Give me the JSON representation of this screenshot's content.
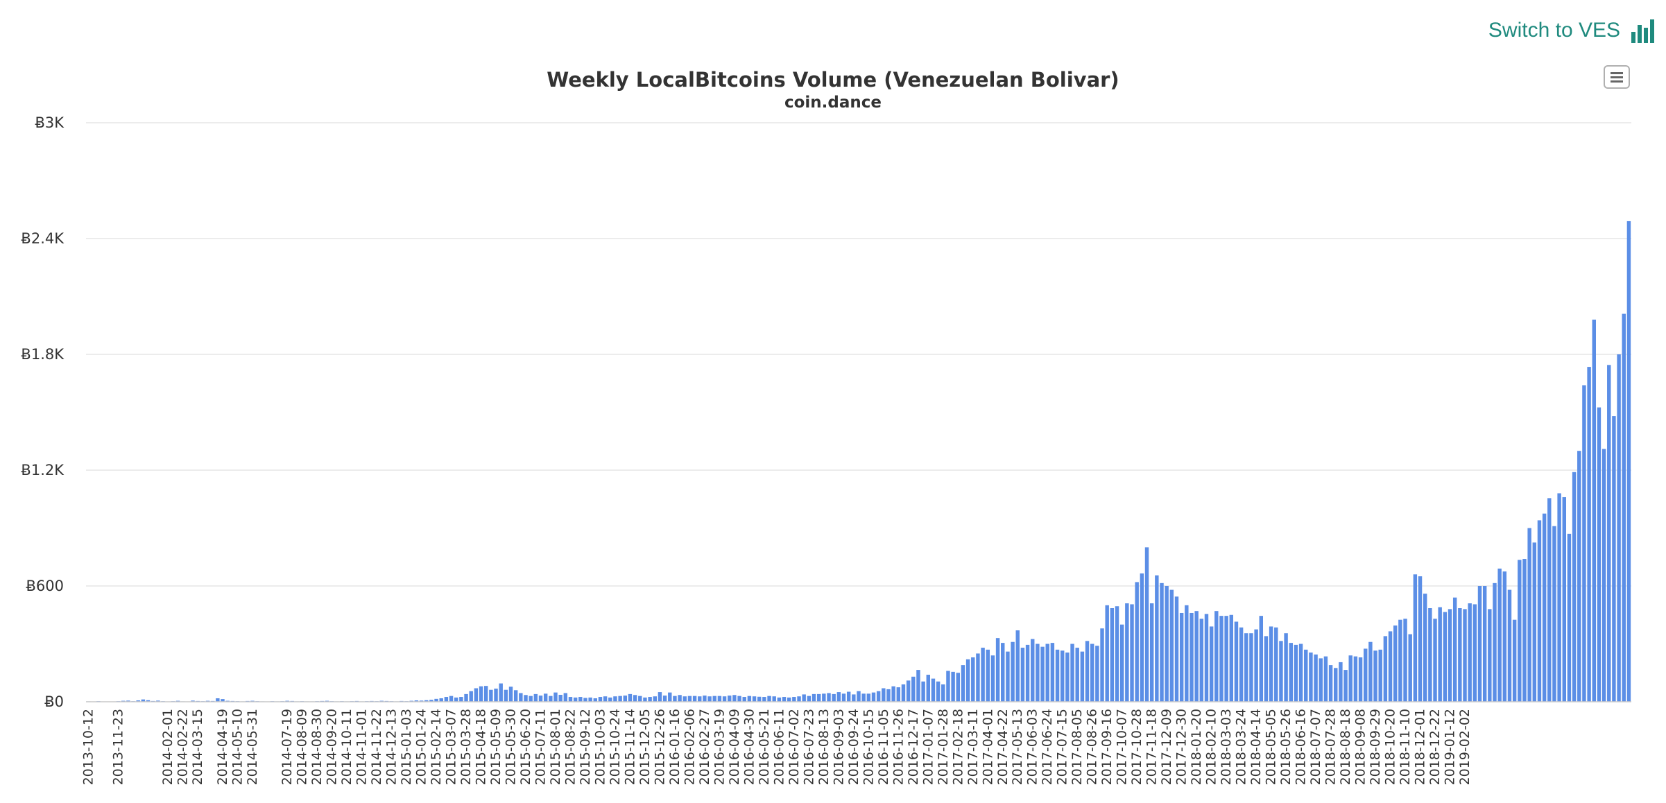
{
  "header": {
    "switch_label": "Switch to VES",
    "switch_icon": "bar-chart-icon",
    "menu_icon": "hamburger-menu-icon"
  },
  "colors": {
    "bar": "#5b8ee6",
    "grid": "#e6e6e6",
    "link": "#1f8a7e"
  },
  "chart_data": {
    "type": "bar",
    "title": "Weekly LocalBitcoins Volume (Venezuelan Bolivar)",
    "subtitle": "coin.dance",
    "xlabel": "",
    "ylabel": "",
    "ylim": [
      0,
      3000
    ],
    "yticks": [
      0,
      600,
      1200,
      1800,
      2400,
      3000
    ],
    "ytick_labels": [
      "Ƀ0",
      "Ƀ600",
      "Ƀ1.2K",
      "Ƀ1.8K",
      "Ƀ2.4K",
      "Ƀ3K"
    ],
    "x_start_week": "2013-10-12",
    "x_labels": [
      "2013-10-12",
      "2013-11-23",
      "2014-02-01",
      "2014-02-22",
      "2014-03-15",
      "2014-04-19",
      "2014-05-10",
      "2014-05-31",
      "2014-07-19",
      "2014-08-09",
      "2014-08-30",
      "2014-09-20",
      "2014-10-11",
      "2014-11-01",
      "2014-11-22",
      "2014-12-13",
      "2015-01-03",
      "2015-01-24",
      "2015-02-14",
      "2015-03-07",
      "2015-03-28",
      "2015-04-18",
      "2015-05-09",
      "2015-05-30",
      "2015-06-20",
      "2015-07-11",
      "2015-08-01",
      "2015-08-22",
      "2015-09-12",
      "2015-10-03",
      "2015-10-24",
      "2015-11-14",
      "2015-12-05",
      "2015-12-26",
      "2016-01-16",
      "2016-02-06",
      "2016-02-27",
      "2016-03-19",
      "2016-04-09",
      "2016-04-30",
      "2016-05-21",
      "2016-06-11",
      "2016-07-02",
      "2016-07-23",
      "2016-08-13",
      "2016-09-03",
      "2016-09-24",
      "2016-10-15",
      "2016-11-05",
      "2016-11-26",
      "2016-12-17",
      "2017-01-07",
      "2017-01-28",
      "2017-02-18",
      "2017-03-11",
      "2017-04-01",
      "2017-04-22",
      "2017-05-13",
      "2017-06-03",
      "2017-06-24",
      "2017-07-15",
      "2017-08-05",
      "2017-08-26",
      "2017-09-16",
      "2017-10-07",
      "2017-10-28",
      "2017-11-18",
      "2017-12-09",
      "2017-12-30",
      "2018-01-20",
      "2018-02-10",
      "2018-03-03",
      "2018-03-24",
      "2018-04-14",
      "2018-05-05",
      "2018-05-26",
      "2018-06-16",
      "2018-07-07",
      "2018-07-28",
      "2018-08-18",
      "2018-09-08",
      "2018-09-29",
      "2018-10-20",
      "2018-11-10",
      "2018-12-01",
      "2018-12-22",
      "2019-01-12",
      "2019-02-02"
    ],
    "series": [
      {
        "values": [
          2,
          1,
          3,
          1,
          0,
          1,
          3,
          5,
          6,
          3,
          7,
          12,
          8,
          4,
          6,
          3,
          1,
          3,
          5,
          2,
          1,
          6,
          4,
          3,
          5,
          4,
          18,
          14,
          5,
          4,
          3,
          2,
          4,
          5,
          3,
          2,
          1,
          3,
          2,
          3,
          5,
          4,
          2,
          3,
          2,
          2,
          3,
          4,
          5,
          3,
          2,
          3,
          2,
          3,
          4,
          2,
          3,
          4,
          3,
          5,
          4,
          3,
          2,
          4,
          3,
          5,
          7,
          6,
          8,
          10,
          15,
          18,
          25,
          30,
          22,
          25,
          40,
          55,
          70,
          80,
          82,
          62,
          68,
          95,
          62,
          78,
          60,
          45,
          35,
          30,
          40,
          32,
          42,
          30,
          48,
          36,
          45,
          25,
          22,
          25,
          20,
          22,
          18,
          25,
          28,
          22,
          28,
          30,
          32,
          40,
          35,
          30,
          22,
          25,
          28,
          50,
          32,
          48,
          30,
          35,
          28,
          30,
          30,
          28,
          32,
          28,
          30,
          30,
          28,
          32,
          35,
          30,
          25,
          30,
          28,
          26,
          25,
          30,
          28,
          22,
          25,
          22,
          25,
          28,
          38,
          30,
          40,
          40,
          42,
          45,
          40,
          50,
          42,
          52,
          38,
          55,
          42,
          42,
          48,
          55,
          70,
          65,
          80,
          75,
          90,
          110,
          130,
          165,
          105,
          140,
          120,
          105,
          90,
          160,
          155,
          150,
          190,
          220,
          230,
          250,
          280,
          270,
          240,
          330,
          305,
          260,
          310,
          370,
          280,
          295,
          325,
          300,
          285,
          300,
          305,
          270,
          265,
          255,
          300,
          280,
          260,
          315,
          300,
          290,
          380,
          500,
          485,
          495,
          400,
          510,
          505,
          620,
          665,
          800,
          510,
          655,
          615,
          600,
          580,
          545,
          460,
          500,
          460,
          470,
          430,
          455,
          390,
          470,
          445,
          445,
          450,
          415,
          385,
          355,
          355,
          375,
          445,
          340,
          390,
          385,
          315,
          355,
          305,
          295,
          300,
          270,
          255,
          245,
          225,
          235,
          190,
          175,
          205,
          165,
          240,
          235,
          230,
          275,
          310,
          265,
          270,
          340,
          365,
          395,
          425,
          430,
          350,
          660,
          650,
          560,
          485,
          430,
          490,
          465,
          480,
          540,
          485,
          480,
          510,
          505,
          600,
          600,
          480,
          615,
          690,
          675,
          580,
          425,
          735,
          740,
          900,
          825,
          940,
          975,
          1055,
          910,
          1080,
          1060,
          870,
          1190,
          1300,
          1640,
          1735,
          1980,
          1525,
          1310,
          1745,
          1480,
          1800,
          2010,
          2490
        ]
      }
    ],
    "grid": true,
    "legend": "none"
  }
}
